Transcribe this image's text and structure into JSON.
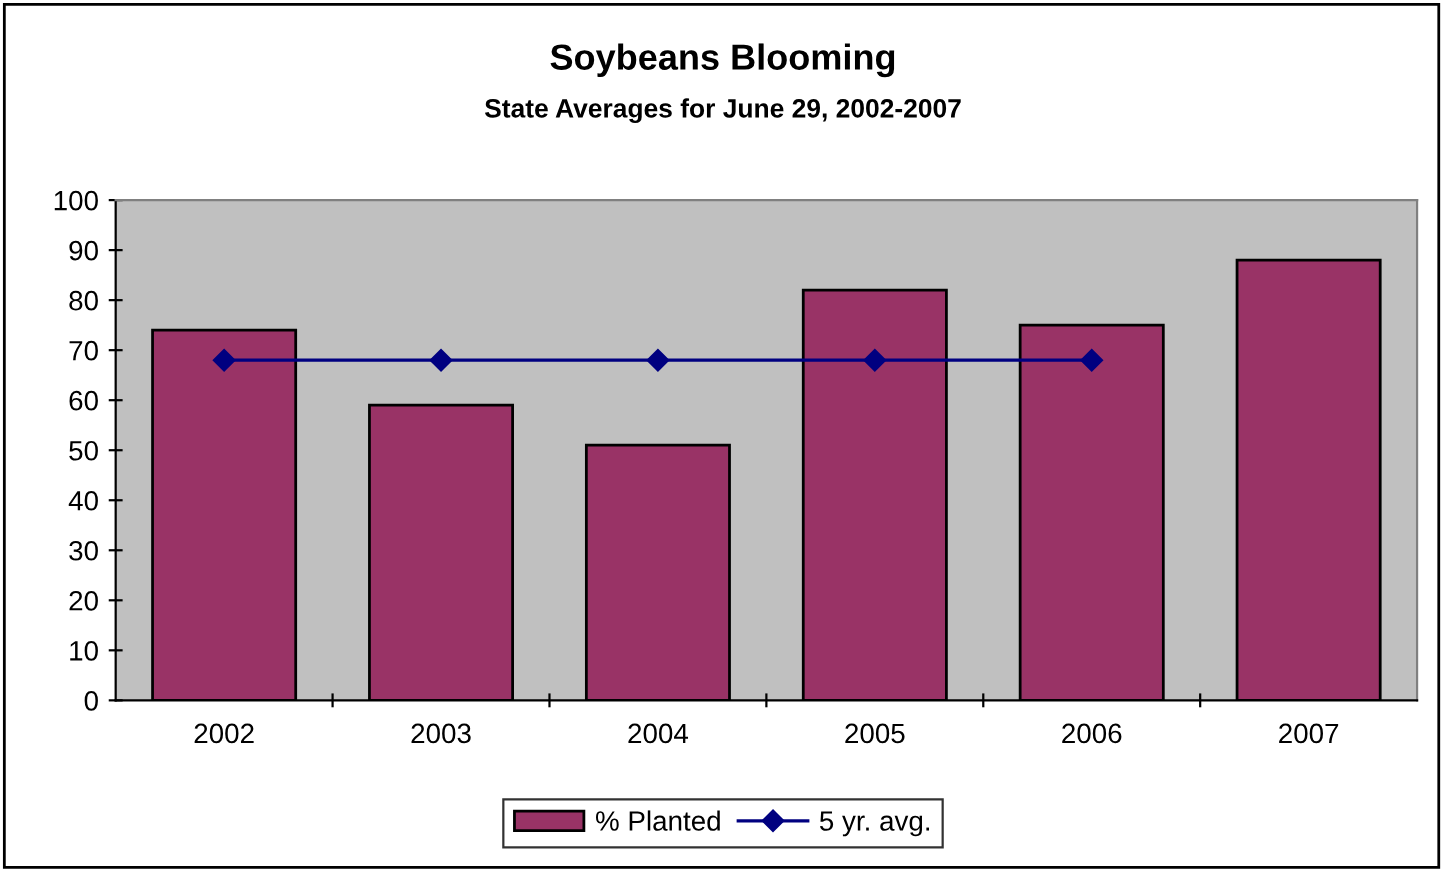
{
  "chart_data": {
    "type": "bar",
    "title": "Soybeans Blooming",
    "subtitle": "State Averages for June 29, 2002-2007",
    "categories": [
      "2002",
      "2003",
      "2004",
      "2005",
      "2006",
      "2007"
    ],
    "series": [
      {
        "name": "% Planted",
        "color": "#993366",
        "values": [
          74,
          59,
          51,
          82,
          75,
          88
        ]
      },
      {
        "name": "5 yr. avg.",
        "type": "line",
        "color": "#000080",
        "marker": "diamond",
        "values": [
          68,
          68,
          68,
          68,
          68,
          null
        ]
      }
    ],
    "ylim": [
      0,
      100
    ],
    "yticks": [
      0,
      10,
      20,
      30,
      40,
      50,
      60,
      70,
      80,
      90,
      100
    ],
    "grid": false,
    "legend": "bottom"
  }
}
